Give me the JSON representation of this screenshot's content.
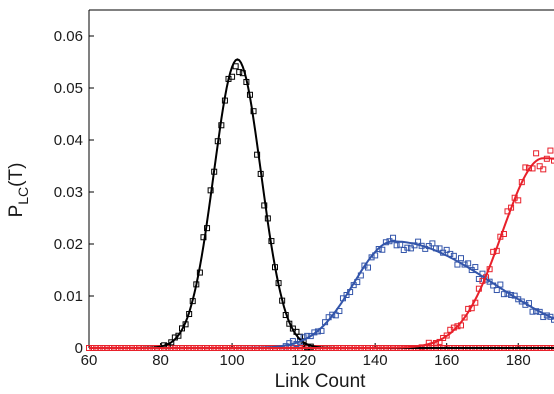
{
  "chart_data": {
    "type": "scatter",
    "title": "",
    "xlabel": "Link Count",
    "ylabel": {
      "main": "P",
      "sub": "LC",
      "suffix": "(T)"
    },
    "xlim": [
      60,
      190
    ],
    "ylim": [
      0,
      0.065
    ],
    "xticks": [
      60,
      80,
      100,
      120,
      140,
      160,
      180
    ],
    "yticks": [
      0,
      0.01,
      0.02,
      0.03,
      0.04,
      0.05,
      0.06
    ],
    "grid": false,
    "legend": "none",
    "series": [
      {
        "color": "#000000",
        "marker": "square",
        "fit": {
          "type": "gaussian",
          "amp": 0.0555,
          "mu": 101.5,
          "sigma": 6.6
        }
      },
      {
        "color": "#3355aa",
        "marker": "square",
        "fit": {
          "type": "skew",
          "amp": 0.0205,
          "mu": 145,
          "sigma_left": 11,
          "sigma_right": 28
        }
      },
      {
        "color": "#e8202a",
        "marker": "square",
        "fit": {
          "type": "sigmoid",
          "max": 0.0365,
          "mid": 165,
          "peak": 187,
          "sigma": 11.5
        }
      }
    ],
    "baseline_markers": {
      "color": "#e8202a",
      "from": 60,
      "to": 190
    }
  }
}
